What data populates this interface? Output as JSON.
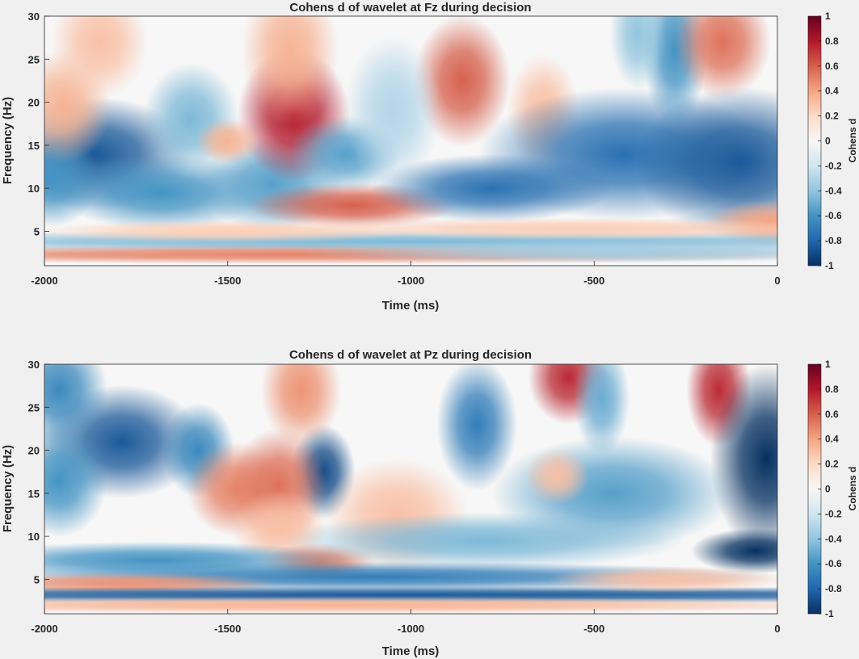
{
  "chart_data": [
    {
      "type": "heatmap",
      "title": "Cohens d of wavelet at Fz during decision",
      "xlabel": "Time (ms)",
      "ylabel": "Frequency (Hz)",
      "colorbar_label": "Cohens d",
      "xlim": [
        -2000,
        0
      ],
      "ylim": [
        1,
        30
      ],
      "clim": [
        -1,
        1
      ],
      "xticks": [
        -2000,
        -1500,
        -1000,
        -500,
        0
      ],
      "yticks": [
        5,
        10,
        15,
        20,
        25,
        30
      ],
      "cticks": [
        -1,
        -0.8,
        -0.6,
        -0.4,
        -0.2,
        0,
        0.2,
        0.4,
        0.6,
        0.8,
        1
      ],
      "colormap": [
        "#053061",
        "#2166ac",
        "#4393c3",
        "#92c5de",
        "#d1e5f0",
        "#f7f7f7",
        "#fddbc7",
        "#f4a582",
        "#d6604d",
        "#b2182b",
        "#67001f"
      ],
      "blobs": [
        {
          "t": -1860,
          "f": 14,
          "st": 120,
          "sf": 3,
          "d": -0.85
        },
        {
          "t": -1980,
          "f": 11,
          "st": 60,
          "sf": 2.5,
          "d": -0.6
        },
        {
          "t": -1680,
          "f": 9.5,
          "st": 130,
          "sf": 2,
          "d": -0.6
        },
        {
          "t": -1380,
          "f": 10.5,
          "st": 90,
          "sf": 2.5,
          "d": -0.55
        },
        {
          "t": -1600,
          "f": 18,
          "st": 60,
          "sf": 3,
          "d": -0.45
        },
        {
          "t": -1320,
          "f": 18.5,
          "st": 70,
          "sf": 3.5,
          "d": 0.8
        },
        {
          "t": -1330,
          "f": 26,
          "st": 60,
          "sf": 4,
          "d": 0.35
        },
        {
          "t": -1950,
          "f": 19.5,
          "st": 60,
          "sf": 3,
          "d": 0.35
        },
        {
          "t": -1850,
          "f": 27,
          "st": 60,
          "sf": 3,
          "d": 0.3
        },
        {
          "t": -1160,
          "f": 8,
          "st": 130,
          "sf": 1.2,
          "d": 0.6
        },
        {
          "t": -1180,
          "f": 14,
          "st": 70,
          "sf": 2,
          "d": -0.55
        },
        {
          "t": -860,
          "f": 22.5,
          "st": 60,
          "sf": 3.5,
          "d": 0.6
        },
        {
          "t": -780,
          "f": 10,
          "st": 150,
          "sf": 1.8,
          "d": -0.75
        },
        {
          "t": -640,
          "f": 19,
          "st": 45,
          "sf": 3,
          "d": 0.3
        },
        {
          "t": -1050,
          "f": 19,
          "st": 60,
          "sf": 4,
          "d": -0.3
        },
        {
          "t": -420,
          "f": 14,
          "st": 180,
          "sf": 3.5,
          "d": -0.75
        },
        {
          "t": -100,
          "f": 13,
          "st": 130,
          "sf": 4,
          "d": -0.85
        },
        {
          "t": -280,
          "f": 26,
          "st": 40,
          "sf": 4,
          "d": -0.6
        },
        {
          "t": -150,
          "f": 27,
          "st": 60,
          "sf": 3,
          "d": 0.55
        },
        {
          "t": -380,
          "f": 28,
          "st": 35,
          "sf": 3,
          "d": -0.4
        },
        {
          "t": -20,
          "f": 6,
          "st": 80,
          "sf": 1.2,
          "d": 0.4
        },
        {
          "t": -1000,
          "f": 3.8,
          "st": 900,
          "sf": 0.6,
          "d": -0.45
        },
        {
          "t": -1300,
          "f": 2.3,
          "st": 700,
          "sf": 0.5,
          "d": 0.5
        },
        {
          "t": -450,
          "f": 2.6,
          "st": 400,
          "sf": 0.6,
          "d": -0.35
        },
        {
          "t": -550,
          "f": 5.3,
          "st": 350,
          "sf": 0.6,
          "d": 0.25
        },
        {
          "t": -1500,
          "f": 5,
          "st": 250,
          "sf": 0.6,
          "d": 0.25
        },
        {
          "t": -1500,
          "f": 15.5,
          "st": 40,
          "sf": 1.2,
          "d": 0.35
        }
      ]
    },
    {
      "type": "heatmap",
      "title": "Cohens d of wavelet at Pz during decision",
      "xlabel": "Time (ms)",
      "ylabel": "Frequency (Hz)",
      "colorbar_label": "Cohens d",
      "xlim": [
        -2000,
        0
      ],
      "ylim": [
        1,
        30
      ],
      "clim": [
        -1,
        1
      ],
      "xticks": [
        -2000,
        -1500,
        -1000,
        -500,
        0
      ],
      "yticks": [
        5,
        10,
        15,
        20,
        25,
        30
      ],
      "cticks": [
        -1,
        -0.8,
        -0.6,
        -0.4,
        -0.2,
        0,
        0.2,
        0.4,
        0.6,
        0.8,
        1
      ],
      "colormap": [
        "#053061",
        "#2166ac",
        "#4393c3",
        "#92c5de",
        "#d1e5f0",
        "#f7f7f7",
        "#fddbc7",
        "#f4a582",
        "#d6604d",
        "#b2182b",
        "#67001f"
      ],
      "blobs": [
        {
          "t": -1790,
          "f": 21,
          "st": 100,
          "sf": 3,
          "d": -0.85
        },
        {
          "t": -1960,
          "f": 16.5,
          "st": 60,
          "sf": 3,
          "d": -0.6
        },
        {
          "t": -1960,
          "f": 27,
          "st": 60,
          "sf": 3,
          "d": -0.65
        },
        {
          "t": -1580,
          "f": 20,
          "st": 45,
          "sf": 2.5,
          "d": -0.65
        },
        {
          "t": -1240,
          "f": 17.5,
          "st": 40,
          "sf": 2.5,
          "d": -0.9
        },
        {
          "t": -1480,
          "f": 15.5,
          "st": 60,
          "sf": 2.5,
          "d": 0.5
        },
        {
          "t": -1360,
          "f": 16,
          "st": 60,
          "sf": 3,
          "d": 0.55
        },
        {
          "t": -1300,
          "f": 27,
          "st": 50,
          "sf": 3,
          "d": 0.45
        },
        {
          "t": -1360,
          "f": 11,
          "st": 60,
          "sf": 2,
          "d": 0.3
        },
        {
          "t": -1250,
          "f": 7,
          "st": 70,
          "sf": 1,
          "d": 0.5
        },
        {
          "t": -1040,
          "f": 12.5,
          "st": 90,
          "sf": 3,
          "d": 0.3
        },
        {
          "t": -820,
          "f": 23,
          "st": 50,
          "sf": 3.5,
          "d": -0.7
        },
        {
          "t": -570,
          "f": 28.5,
          "st": 50,
          "sf": 2.5,
          "d": 0.75
        },
        {
          "t": -160,
          "f": 27,
          "st": 40,
          "sf": 3,
          "d": 0.75
        },
        {
          "t": -30,
          "f": 19,
          "st": 70,
          "sf": 5,
          "d": -1.0
        },
        {
          "t": -450,
          "f": 15,
          "st": 150,
          "sf": 3,
          "d": -0.55
        },
        {
          "t": -60,
          "f": 8.3,
          "st": 80,
          "sf": 1.2,
          "d": -1.0
        },
        {
          "t": -800,
          "f": 9.5,
          "st": 250,
          "sf": 1.5,
          "d": -0.45
        },
        {
          "t": -1100,
          "f": 5.3,
          "st": 500,
          "sf": 0.8,
          "d": -0.7
        },
        {
          "t": -1700,
          "f": 7.2,
          "st": 250,
          "sf": 1,
          "d": -0.6
        },
        {
          "t": -1800,
          "f": 4.5,
          "st": 200,
          "sf": 0.6,
          "d": 0.45
        },
        {
          "t": -1000,
          "f": 3.2,
          "st": 1200,
          "sf": 0.45,
          "d": -0.85
        },
        {
          "t": -1200,
          "f": 2,
          "st": 700,
          "sf": 0.45,
          "d": 0.35
        },
        {
          "t": -600,
          "f": 17,
          "st": 40,
          "sf": 1.5,
          "d": 0.3
        },
        {
          "t": -480,
          "f": 26,
          "st": 35,
          "sf": 3,
          "d": -0.5
        },
        {
          "t": -300,
          "f": 5,
          "st": 150,
          "sf": 0.7,
          "d": 0.3
        }
      ]
    }
  ]
}
